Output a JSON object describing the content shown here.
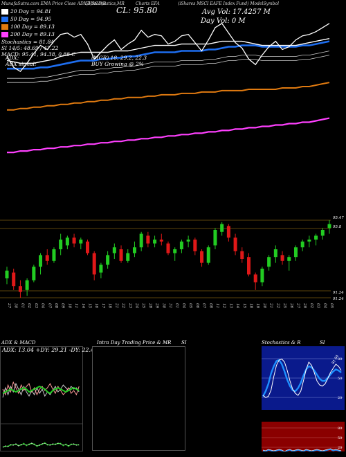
{
  "header": {
    "left": "EMA Price Close ADX,MACD,R",
    "left_prefix": "MunafaSutra.com",
    "stoch": "SI,Stochastics,MR",
    "chart_label": "Charts EFA",
    "right": "(iShares MSCI EAFE Index Fund) ModelSymbol",
    "cl": "CL: 95.80",
    "avg_vol": "Avg Vol: 17.4257 M",
    "day_vol": "Day Vol: 0   M"
  },
  "indicators": [
    {
      "label": "20  Day = 94.81",
      "color": "#ffffff"
    },
    {
      "label": "50  Day = 94.95",
      "color": "#1e6ef0"
    },
    {
      "label": "100  Day = 89.13",
      "color": "#e07a10"
    },
    {
      "label": "200  Day = 89.13",
      "color": "#ff40ff"
    }
  ],
  "stats": {
    "stoch": "Stochastics = 81.84",
    "si": "SI 14/5: 48.69 / 47.22",
    "macd": "MACD: 95.41, 94.38, 0.88  C",
    "adx_label": "ADX:",
    "adx_vals": "(MGR) 18, 29.2, 22.3",
    "adx_signal_label": "ADX  signal:",
    "adx_signal": "BUY Growing @ 2%"
  },
  "price_labels": [
    {
      "text": "95.47",
      "value": 95.47
    },
    {
      "text": "95.8",
      "value": 95.8
    },
    {
      "text": "91.24",
      "value": 91.24
    },
    {
      "text": "91.24",
      "value": 91.24
    }
  ],
  "x_dates": [
    "27 Sep",
    "30 Sep",
    "01 Oct",
    "02 Oct",
    "03 Oct",
    "04 Oct",
    "07 Oct",
    "08 Oct",
    "09 Oct",
    "10 Oct",
    "11 Oct",
    "14 Oct",
    "15 Oct",
    "16 Oct",
    "17 Oct",
    "18 Oct",
    "21 Oct",
    "22 Oct",
    "23 Oct",
    "24 Oct",
    "25 Oct",
    "28 Oct",
    "29 Oct",
    "30 Oct",
    "31 Oct",
    "01 Nov",
    "04 Nov",
    "05 Nov",
    "06 Nov",
    "07 Nov",
    "08 Nov",
    "11 Nov",
    "12 Nov",
    "13 Nov",
    "14 Nov",
    "15 Nov",
    "18 Nov",
    "19 Nov",
    "20 Nov",
    "21 Nov",
    "22 Nov",
    "25 Nov",
    "26 Nov",
    "27 Nov",
    "29 Nov",
    "02 Dec",
    "03 Dec",
    "04 Dec",
    "05 Dec"
  ],
  "panels": {
    "adx_title": "ADX  & MACD",
    "adx_vals": "ADX: 13.04  +DY: 29.21 -DY: 22.47",
    "intraday_title": "Intra  Day Trading Price  & MR",
    "intraday_si": "SI",
    "stoch_title": "Stochastics & R",
    "stoch_si": "SI",
    "stoch_ticks": [
      "80",
      "50",
      "20"
    ],
    "stoch_last": "81.84",
    "si_ticks": [
      "80",
      "50",
      "20"
    ]
  },
  "colors": {
    "ema20": "#ffffff",
    "ema50": "#1e6ef0",
    "ema100": "#e07a10",
    "ema200": "#ff40ff",
    "up": "#22cc22",
    "down": "#e01818",
    "grid": "#7a5a10"
  },
  "chart_data": {
    "type": "candlestick",
    "dates": [
      "27 Sep",
      "30 Sep",
      "01 Oct",
      "02 Oct",
      "03 Oct",
      "04 Oct",
      "07 Oct",
      "08 Oct",
      "09 Oct",
      "10 Oct",
      "11 Oct",
      "14 Oct",
      "15 Oct",
      "16 Oct",
      "17 Oct",
      "18 Oct",
      "21 Oct",
      "22 Oct",
      "23 Oct",
      "24 Oct",
      "25 Oct",
      "28 Oct",
      "29 Oct",
      "30 Oct",
      "31 Oct",
      "01 Nov",
      "04 Nov",
      "05 Nov",
      "06 Nov",
      "07 Nov",
      "08 Nov",
      "11 Nov",
      "12 Nov",
      "13 Nov",
      "14 Nov",
      "15 Nov",
      "18 Nov",
      "19 Nov",
      "20 Nov",
      "21 Nov",
      "22 Nov",
      "25 Nov",
      "26 Nov",
      "27 Nov",
      "29 Nov",
      "02 Dec",
      "03 Dec",
      "04 Dec",
      "05 Dec"
    ],
    "ohlc": [
      [
        93.0,
        93.6,
        92.7,
        93.4
      ],
      [
        93.3,
        93.5,
        92.4,
        92.6
      ],
      [
        92.6,
        92.9,
        92.0,
        92.3
      ],
      [
        92.4,
        93.0,
        92.1,
        92.9
      ],
      [
        92.9,
        93.7,
        92.8,
        93.6
      ],
      [
        93.6,
        94.3,
        93.2,
        94.2
      ],
      [
        94.2,
        94.5,
        93.7,
        93.9
      ],
      [
        93.9,
        94.6,
        93.8,
        94.5
      ],
      [
        94.5,
        95.3,
        94.2,
        95.0
      ],
      [
        94.7,
        95.2,
        94.5,
        95.1
      ],
      [
        95.1,
        95.3,
        94.6,
        94.8
      ],
      [
        94.8,
        95.1,
        94.5,
        95.0
      ],
      [
        94.9,
        95.0,
        94.2,
        94.3
      ],
      [
        94.3,
        94.4,
        92.9,
        93.2
      ],
      [
        93.3,
        93.8,
        93.0,
        93.7
      ],
      [
        93.7,
        94.4,
        93.5,
        94.2
      ],
      [
        94.3,
        94.8,
        94.0,
        94.6
      ],
      [
        94.5,
        94.7,
        93.8,
        93.9
      ],
      [
        93.9,
        94.5,
        93.8,
        94.3
      ],
      [
        94.3,
        94.9,
        94.1,
        94.6
      ],
      [
        94.6,
        95.4,
        94.4,
        95.3
      ],
      [
        95.2,
        95.4,
        94.6,
        94.8
      ],
      [
        94.8,
        95.2,
        94.6,
        95.0
      ],
      [
        95.0,
        95.3,
        94.7,
        94.9
      ],
      [
        94.8,
        94.9,
        94.2,
        94.3
      ],
      [
        94.3,
        94.6,
        93.9,
        94.5
      ],
      [
        94.5,
        95.0,
        94.3,
        94.9
      ],
      [
        94.9,
        95.2,
        94.6,
        95.0
      ],
      [
        95.0,
        95.1,
        94.2,
        94.4
      ],
      [
        94.4,
        94.5,
        93.6,
        93.8
      ],
      [
        93.8,
        94.7,
        93.7,
        94.6
      ],
      [
        94.7,
        95.6,
        94.5,
        95.5
      ],
      [
        95.4,
        95.9,
        95.2,
        95.8
      ],
      [
        95.7,
        95.8,
        94.9,
        95.1
      ],
      [
        95.1,
        95.3,
        94.2,
        94.4
      ],
      [
        94.4,
        94.6,
        93.8,
        94.0
      ],
      [
        94.1,
        94.3,
        93.1,
        93.2
      ],
      [
        93.2,
        93.3,
        92.4,
        92.8
      ],
      [
        92.8,
        93.6,
        92.6,
        93.5
      ],
      [
        93.6,
        94.2,
        93.4,
        94.1
      ],
      [
        94.1,
        94.7,
        93.8,
        94.5
      ],
      [
        94.2,
        94.4,
        93.7,
        93.9
      ],
      [
        93.9,
        94.2,
        93.4,
        94.1
      ],
      [
        94.1,
        94.7,
        93.9,
        94.6
      ],
      [
        94.6,
        95.0,
        94.4,
        94.9
      ],
      [
        94.9,
        95.2,
        94.6,
        95.0
      ],
      [
        95.0,
        95.3,
        94.7,
        95.2
      ],
      [
        95.2,
        95.6,
        95.0,
        95.5
      ],
      [
        95.6,
        96.0,
        95.3,
        95.8
      ]
    ],
    "ema20": [
      93.2,
      93.1,
      93.0,
      93.0,
      93.0,
      93.1,
      93.2,
      93.3,
      93.5,
      93.6,
      93.7,
      93.8,
      93.8,
      93.8,
      93.8,
      93.8,
      93.9,
      93.9,
      93.9,
      94.0,
      94.1,
      94.2,
      94.3,
      94.3,
      94.3,
      94.3,
      94.4,
      94.4,
      94.4,
      94.4,
      94.4,
      94.5,
      94.6,
      94.6,
      94.6,
      94.6,
      94.5,
      94.4,
      94.3,
      94.3,
      94.3,
      94.3,
      94.3,
      94.3,
      94.4,
      94.5,
      94.6,
      94.7,
      94.8
    ],
    "ema50": [
      92.6,
      92.6,
      92.6,
      92.6,
      92.6,
      92.7,
      92.7,
      92.8,
      92.9,
      93.0,
      93.1,
      93.2,
      93.2,
      93.2,
      93.3,
      93.3,
      93.4,
      93.4,
      93.5,
      93.5,
      93.6,
      93.7,
      93.8,
      93.8,
      93.8,
      93.8,
      93.9,
      93.9,
      93.9,
      93.9,
      94.0,
      94.0,
      94.1,
      94.2,
      94.2,
      94.3,
      94.3,
      94.3,
      94.2,
      94.2,
      94.2,
      94.2,
      94.2,
      94.2,
      94.3,
      94.3,
      94.4,
      94.5,
      94.6
    ],
    "ema100": [
      89.6,
      89.6,
      89.7,
      89.7,
      89.8,
      89.8,
      89.9,
      89.9,
      90.0,
      90.0,
      90.1,
      90.1,
      90.2,
      90.2,
      90.3,
      90.3,
      90.4,
      90.4,
      90.5,
      90.5,
      90.5,
      90.6,
      90.6,
      90.7,
      90.7,
      90.7,
      90.8,
      90.8,
      90.8,
      90.9,
      90.9,
      90.9,
      91.0,
      91.0,
      91.0,
      91.0,
      91.1,
      91.1,
      91.1,
      91.1,
      91.1,
      91.2,
      91.2,
      91.2,
      91.3,
      91.3,
      91.4,
      91.5,
      91.6
    ],
    "ema200": [
      86.5,
      86.5,
      86.6,
      86.6,
      86.7,
      86.7,
      86.8,
      86.8,
      86.9,
      86.9,
      87.0,
      87.0,
      87.1,
      87.1,
      87.2,
      87.2,
      87.3,
      87.3,
      87.4,
      87.4,
      87.5,
      87.5,
      87.6,
      87.6,
      87.7,
      87.7,
      87.8,
      87.8,
      87.9,
      87.9,
      88.0,
      88.0,
      88.1,
      88.1,
      88.2,
      88.2,
      88.3,
      88.3,
      88.4,
      88.4,
      88.5,
      88.5,
      88.6,
      88.6,
      88.7,
      88.7,
      88.8,
      88.9,
      89.0
    ],
    "ylim": [
      86.0,
      96.6
    ]
  }
}
